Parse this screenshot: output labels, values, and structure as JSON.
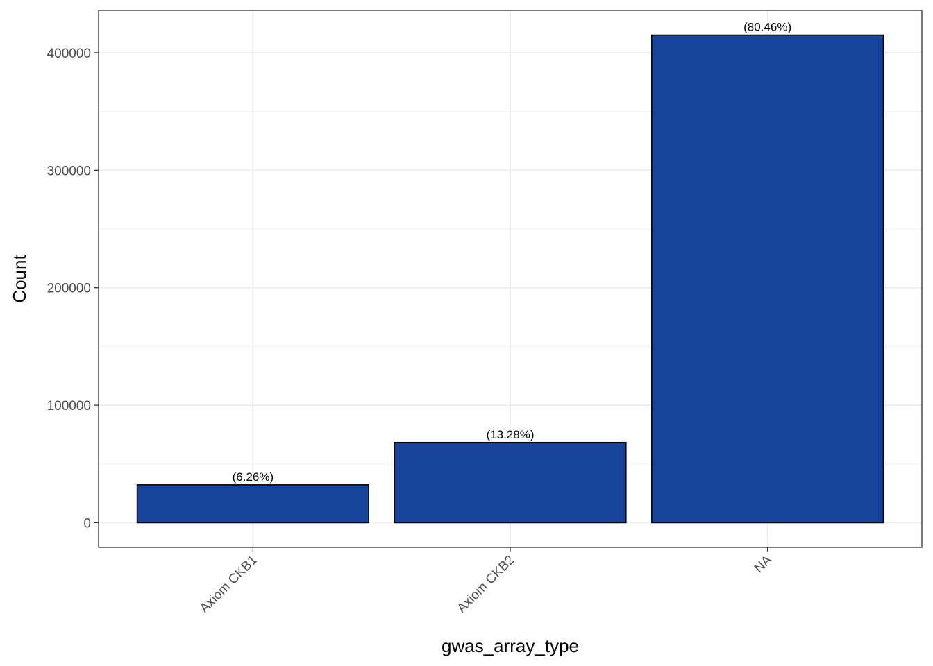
{
  "chart_data": {
    "type": "bar",
    "title": "",
    "xlabel": "gwas_array_type",
    "ylabel": "Count",
    "categories": [
      "Axiom CKB1",
      "Axiom CKB2",
      "NA"
    ],
    "values": [
      32200,
      68300,
      415000
    ],
    "data_labels": [
      "(6.26%)",
      "(13.28%)",
      "(80.46%)"
    ],
    "ylim": [
      -21000,
      436000
    ],
    "yticks": [
      0,
      100000,
      200000,
      300000,
      400000
    ],
    "ytick_labels": [
      "0",
      "100000",
      "200000",
      "300000",
      "400000"
    ],
    "grid": true,
    "legend": "none",
    "colors": {
      "bar_fill": "#18439A",
      "bar_outline": "#000000",
      "grid_major": "#EBEBEB",
      "grid_minor": "#F2F2F2",
      "panel_border": "#333333"
    }
  }
}
